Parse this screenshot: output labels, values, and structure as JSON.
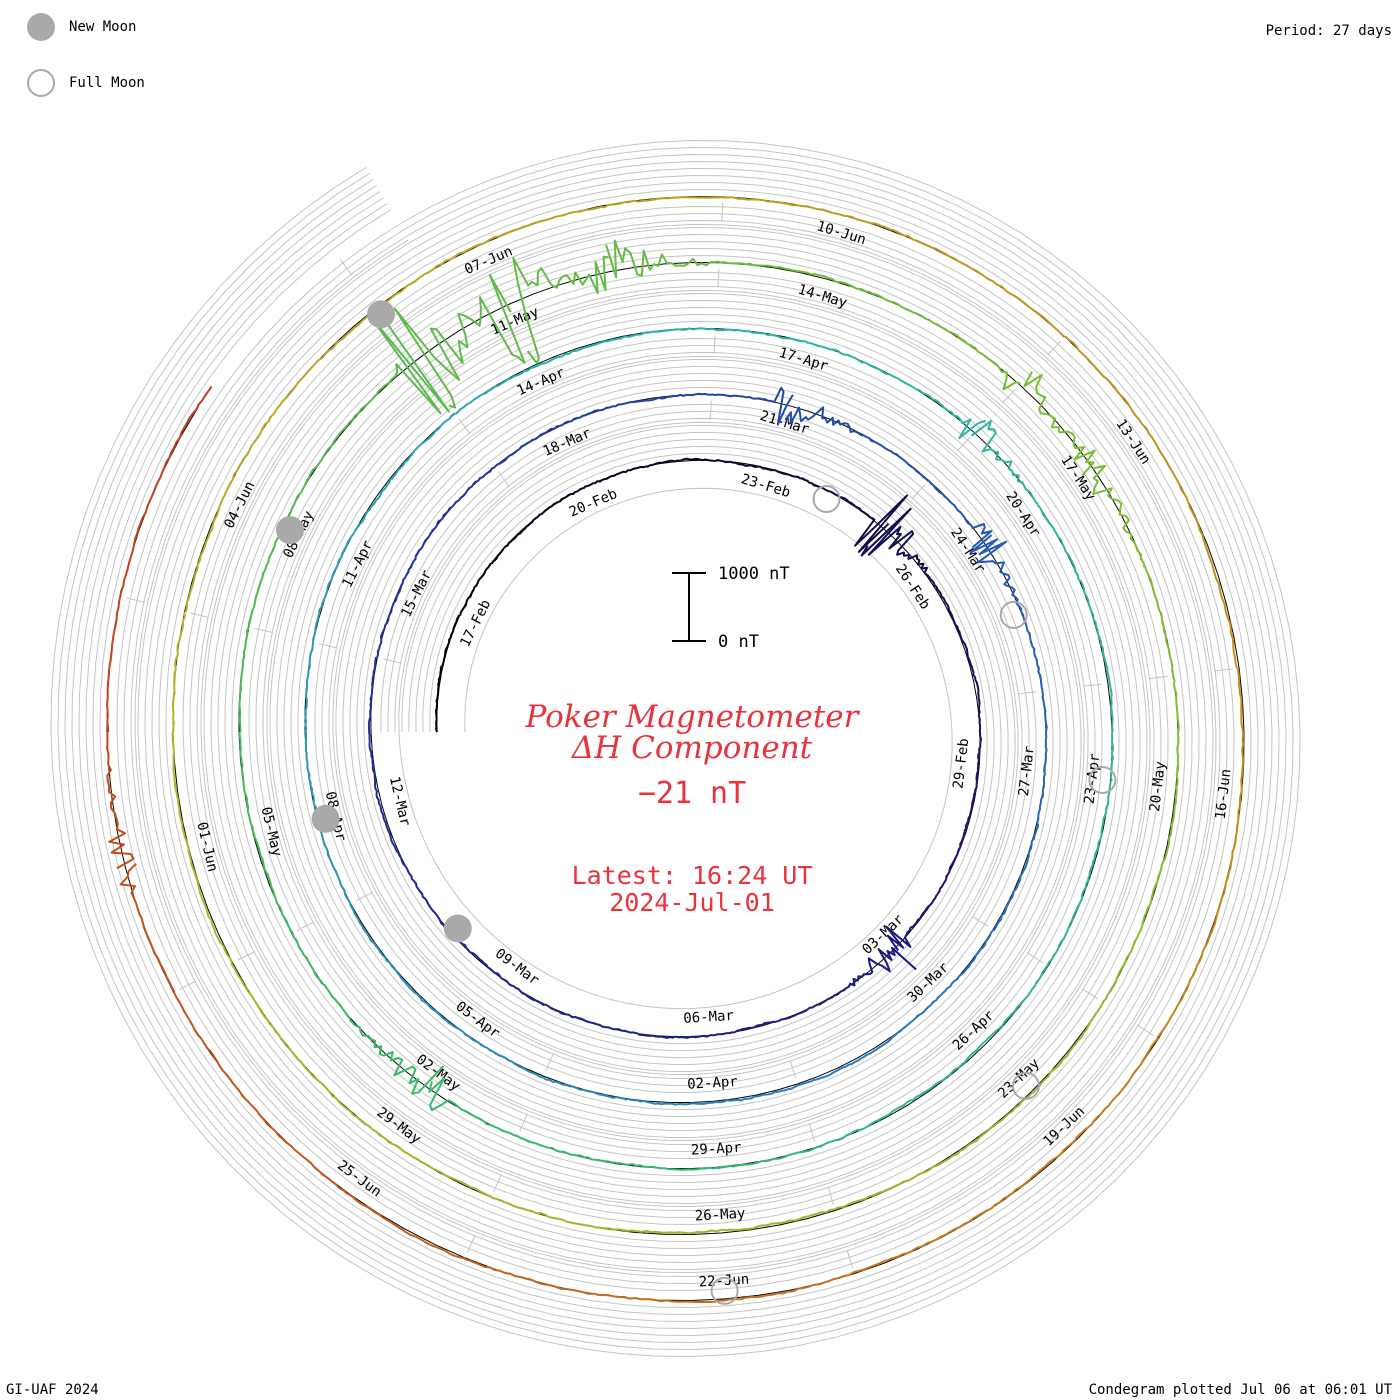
{
  "legend": {
    "new_moon_label": "New Moon",
    "full_moon_label": "Full Moon",
    "new_moon_color": "#a9a9a9",
    "full_moon_color": "#a9a9a9"
  },
  "period_label": "Period: 27 days",
  "footer": {
    "credit": "GI-UAF 2024",
    "plotted": "Condegram plotted Jul 06 at 06:01 UT"
  },
  "chart_data": {
    "type": "line",
    "title_line1": "Poker Magnetometer",
    "title_line2": "ΔH Component",
    "current_value": "−21 nT",
    "latest_time": "Latest: 16:24 UT",
    "latest_date": "2024-Jul-01",
    "scale_top_label": "1000 nT",
    "scale_bottom_label": "0 nT",
    "period_days": 27,
    "start_date": "2024-02-15",
    "end_date": "2024-07-01",
    "series_colors": [
      "#000000",
      "#1c1478",
      "#2238a6",
      "#2b7fbf",
      "#30b3a7",
      "#37b86a",
      "#7ebd32",
      "#b3b42c",
      "#c8871e",
      "#c0391a"
    ],
    "date_labels": [
      {
        "text": "17-Feb",
        "date": "2024-02-17"
      },
      {
        "text": "20-Feb",
        "date": "2024-02-20"
      },
      {
        "text": "23-Feb",
        "date": "2024-02-23"
      },
      {
        "text": "26-Feb",
        "date": "2024-02-26"
      },
      {
        "text": "29-Feb",
        "date": "2024-02-29"
      },
      {
        "text": "03-Mar",
        "date": "2024-03-03"
      },
      {
        "text": "06-Mar",
        "date": "2024-03-06"
      },
      {
        "text": "09-Mar",
        "date": "2024-03-09"
      },
      {
        "text": "12-Mar",
        "date": "2024-03-12"
      },
      {
        "text": "15-Mar",
        "date": "2024-03-15"
      },
      {
        "text": "18-Mar",
        "date": "2024-03-18"
      },
      {
        "text": "21-Mar",
        "date": "2024-03-21"
      },
      {
        "text": "24-Mar",
        "date": "2024-03-24"
      },
      {
        "text": "27-Mar",
        "date": "2024-03-27"
      },
      {
        "text": "30-Mar",
        "date": "2024-03-30"
      },
      {
        "text": "02-Apr",
        "date": "2024-04-02"
      },
      {
        "text": "05-Apr",
        "date": "2024-04-05"
      },
      {
        "text": "08-Apr",
        "date": "2024-04-08"
      },
      {
        "text": "11-Apr",
        "date": "2024-04-11"
      },
      {
        "text": "14-Apr",
        "date": "2024-04-14"
      },
      {
        "text": "17-Apr",
        "date": "2024-04-17"
      },
      {
        "text": "20-Apr",
        "date": "2024-04-20"
      },
      {
        "text": "23-Apr",
        "date": "2024-04-23"
      },
      {
        "text": "26-Apr",
        "date": "2024-04-26"
      },
      {
        "text": "29-Apr",
        "date": "2024-04-29"
      },
      {
        "text": "02-May",
        "date": "2024-05-02"
      },
      {
        "text": "05-May",
        "date": "2024-05-05"
      },
      {
        "text": "08-May",
        "date": "2024-05-08"
      },
      {
        "text": "11-May",
        "date": "2024-05-11"
      },
      {
        "text": "14-May",
        "date": "2024-05-14"
      },
      {
        "text": "17-May",
        "date": "2024-05-17"
      },
      {
        "text": "20-May",
        "date": "2024-05-20"
      },
      {
        "text": "23-May",
        "date": "2024-05-23"
      },
      {
        "text": "26-May",
        "date": "2024-05-26"
      },
      {
        "text": "29-May",
        "date": "2024-05-29"
      },
      {
        "text": "01-Jun",
        "date": "2024-06-01"
      },
      {
        "text": "04-Jun",
        "date": "2024-06-04"
      },
      {
        "text": "07-Jun",
        "date": "2024-06-07"
      },
      {
        "text": "10-Jun",
        "date": "2024-06-10"
      },
      {
        "text": "13-Jun",
        "date": "2024-06-13"
      },
      {
        "text": "16-Jun",
        "date": "2024-06-16"
      },
      {
        "text": "19-Jun",
        "date": "2024-06-19"
      },
      {
        "text": "22-Jun",
        "date": "2024-06-22"
      },
      {
        "text": "25-Jun",
        "date": "2024-06-25"
      }
    ],
    "new_moons": [
      "2024-03-10",
      "2024-04-08",
      "2024-05-08",
      "2024-06-06"
    ],
    "full_moons": [
      "2024-02-24",
      "2024-03-25",
      "2024-04-23",
      "2024-05-23",
      "2024-06-22"
    ],
    "disturbances": [
      {
        "date": "2024-02-25",
        "peak_nT": 900
      },
      {
        "date": "2024-03-03",
        "peak_nT": 500
      },
      {
        "date": "2024-03-21",
        "peak_nT": 400
      },
      {
        "date": "2024-03-24",
        "peak_nT": 450
      },
      {
        "date": "2024-04-19",
        "peak_nT": 350
      },
      {
        "date": "2024-05-02",
        "peak_nT": 400
      },
      {
        "date": "2024-05-10",
        "peak_nT": 1400
      },
      {
        "date": "2024-05-11",
        "peak_nT": 1300
      },
      {
        "date": "2024-05-12",
        "peak_nT": 600
      },
      {
        "date": "2024-05-16",
        "peak_nT": 450
      },
      {
        "date": "2024-05-17",
        "peak_nT": 400
      },
      {
        "date": "2024-06-28",
        "peak_nT": 300
      }
    ]
  }
}
